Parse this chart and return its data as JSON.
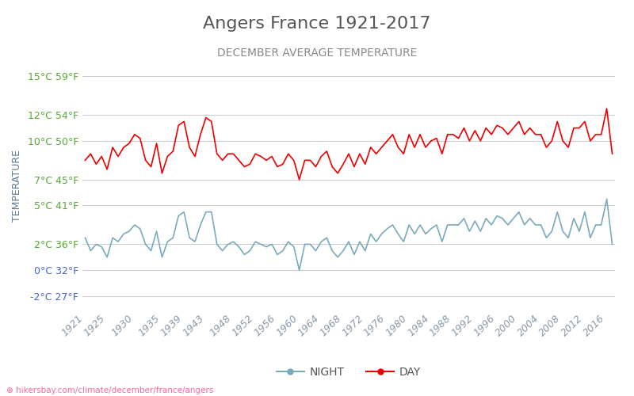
{
  "title": "Angers France 1921-2017",
  "subtitle": "DECEMBER AVERAGE TEMPERATURE",
  "ylabel": "TEMPERATURE",
  "xlabel_url": "hikersbay.com/climate/december/france/angers",
  "title_color": "#555555",
  "subtitle_color": "#888888",
  "ylabel_color": "#5a7a9a",
  "background_color": "#ffffff",
  "grid_color": "#cccccc",
  "day_color": "#ee0000",
  "night_color": "#7aaabb",
  "years": [
    1921,
    1922,
    1923,
    1924,
    1925,
    1926,
    1927,
    1928,
    1929,
    1930,
    1931,
    1932,
    1933,
    1934,
    1935,
    1936,
    1937,
    1938,
    1939,
    1940,
    1941,
    1942,
    1943,
    1944,
    1945,
    1946,
    1947,
    1948,
    1949,
    1950,
    1951,
    1952,
    1953,
    1954,
    1955,
    1956,
    1957,
    1958,
    1959,
    1960,
    1961,
    1962,
    1963,
    1964,
    1965,
    1966,
    1967,
    1968,
    1969,
    1970,
    1971,
    1972,
    1973,
    1974,
    1975,
    1976,
    1977,
    1978,
    1979,
    1980,
    1981,
    1982,
    1983,
    1984,
    1985,
    1986,
    1987,
    1988,
    1989,
    1990,
    1991,
    1992,
    1993,
    1994,
    1995,
    1996,
    1997,
    1998,
    1999,
    2000,
    2001,
    2002,
    2003,
    2004,
    2005,
    2006,
    2007,
    2008,
    2009,
    2010,
    2011,
    2012,
    2013,
    2014,
    2015,
    2016,
    2017
  ],
  "day_temps": [
    8.5,
    9.0,
    8.2,
    8.8,
    7.8,
    9.5,
    8.8,
    9.5,
    9.8,
    10.5,
    10.2,
    8.5,
    8.0,
    9.8,
    7.5,
    8.8,
    9.2,
    11.2,
    11.5,
    9.5,
    8.8,
    10.5,
    11.8,
    11.5,
    9.0,
    8.5,
    9.0,
    9.0,
    8.5,
    8.0,
    8.2,
    9.0,
    8.8,
    8.5,
    8.8,
    8.0,
    8.2,
    9.0,
    8.5,
    7.0,
    8.5,
    8.5,
    8.0,
    8.8,
    9.2,
    8.0,
    7.5,
    8.2,
    9.0,
    8.0,
    9.0,
    8.2,
    9.5,
    9.0,
    9.5,
    10.0,
    10.5,
    9.5,
    9.0,
    10.5,
    9.5,
    10.5,
    9.5,
    10.0,
    10.2,
    9.0,
    10.5,
    10.5,
    10.2,
    11.0,
    10.0,
    10.8,
    10.0,
    11.0,
    10.5,
    11.2,
    11.0,
    10.5,
    11.0,
    11.5,
    10.5,
    11.0,
    10.5,
    10.5,
    9.5,
    10.0,
    11.5,
    10.0,
    9.5,
    11.0,
    11.0,
    11.5,
    10.0,
    10.5,
    10.5,
    12.5,
    9.0
  ],
  "night_temps": [
    2.5,
    1.5,
    2.0,
    1.8,
    1.0,
    2.5,
    2.2,
    2.8,
    3.0,
    3.5,
    3.2,
    2.0,
    1.5,
    3.0,
    1.0,
    2.2,
    2.5,
    4.2,
    4.5,
    2.5,
    2.2,
    3.5,
    4.5,
    4.5,
    2.0,
    1.5,
    2.0,
    2.2,
    1.8,
    1.2,
    1.5,
    2.2,
    2.0,
    1.8,
    2.0,
    1.2,
    1.5,
    2.2,
    1.8,
    0.0,
    2.0,
    2.0,
    1.5,
    2.2,
    2.5,
    1.5,
    1.0,
    1.5,
    2.2,
    1.2,
    2.2,
    1.5,
    2.8,
    2.2,
    2.8,
    3.2,
    3.5,
    2.8,
    2.2,
    3.5,
    2.8,
    3.5,
    2.8,
    3.2,
    3.5,
    2.2,
    3.5,
    3.5,
    3.5,
    4.0,
    3.0,
    3.8,
    3.0,
    4.0,
    3.5,
    4.2,
    4.0,
    3.5,
    4.0,
    4.5,
    3.5,
    4.0,
    3.5,
    3.5,
    2.5,
    3.0,
    4.5,
    3.0,
    2.5,
    4.0,
    3.0,
    4.5,
    2.5,
    3.5,
    3.5,
    5.5,
    2.0
  ],
  "yticks_celsius": [
    -2,
    0,
    2,
    5,
    7,
    10,
    12,
    15
  ],
  "yticks_fahrenheit": [
    27,
    32,
    36,
    41,
    45,
    50,
    54,
    59
  ],
  "xtick_years": [
    1921,
    1925,
    1930,
    1935,
    1939,
    1943,
    1948,
    1952,
    1956,
    1960,
    1964,
    1968,
    1972,
    1976,
    1980,
    1984,
    1988,
    1992,
    1996,
    2000,
    2004,
    2008,
    2012,
    2016
  ],
  "ylim": [
    -3,
    16
  ],
  "title_fontsize": 16,
  "subtitle_fontsize": 10,
  "tick_label_fontsize": 9,
  "legend_fontsize": 10
}
